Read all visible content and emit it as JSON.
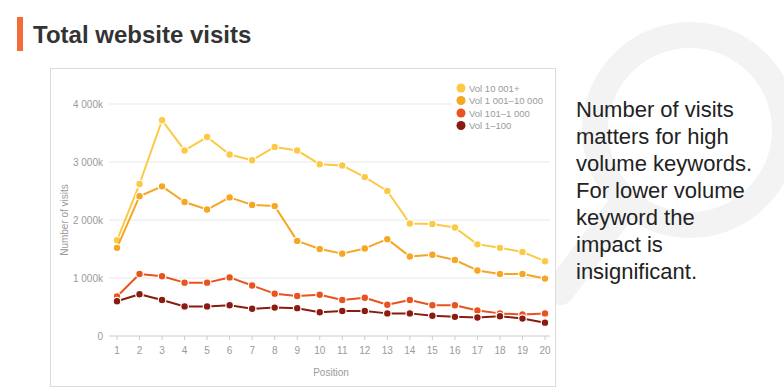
{
  "chart_data": {
    "type": "line",
    "title": "Total website visits",
    "x_label": "Position",
    "y_label": "Number of visits",
    "annotations": [
      "Number of visits",
      "matters for high",
      "volume keywords.",
      "For lower volume",
      "keyword the",
      "impact is",
      "insignificant."
    ],
    "x": [
      1,
      2,
      3,
      4,
      5,
      6,
      7,
      8,
      9,
      10,
      11,
      12,
      13,
      14,
      15,
      16,
      17,
      18,
      19,
      20
    ],
    "xlim": [
      1,
      20
    ],
    "xticks": [
      1,
      2,
      3,
      4,
      5,
      6,
      7,
      8,
      9,
      10,
      11,
      12,
      13,
      14,
      15,
      16,
      17,
      18,
      19,
      20
    ],
    "ylim": [
      0,
      4000000
    ],
    "yticks": [
      0,
      {
        "value": 1000000,
        "label": "1 000k"
      },
      {
        "value": 2000000,
        "label": "2 000k"
      },
      {
        "value": 3000000,
        "label": "3 000k"
      },
      {
        "value": 4000000,
        "label": "4 000k"
      }
    ],
    "grid": true,
    "legend": "top-right",
    "marker": "circle",
    "series": [
      {
        "name": "Vol 10 001+",
        "color": "#fbc943",
        "values": [
          1650000,
          2620000,
          3720000,
          3200000,
          3430000,
          3130000,
          3030000,
          3260000,
          3200000,
          2960000,
          2940000,
          2740000,
          2500000,
          1940000,
          1930000,
          1870000,
          1580000,
          1520000,
          1450000,
          1290000
        ]
      },
      {
        "name": "Vol 1 001–10 000",
        "color": "#f5a623",
        "values": [
          1520000,
          2410000,
          2580000,
          2310000,
          2180000,
          2390000,
          2260000,
          2240000,
          1640000,
          1500000,
          1420000,
          1510000,
          1670000,
          1370000,
          1400000,
          1310000,
          1130000,
          1070000,
          1070000,
          990000
        ]
      },
      {
        "name": "Vol 101–1 000",
        "color": "#e8531f",
        "values": [
          680000,
          1070000,
          1030000,
          920000,
          920000,
          1010000,
          870000,
          730000,
          690000,
          710000,
          620000,
          660000,
          540000,
          620000,
          530000,
          530000,
          440000,
          390000,
          370000,
          390000
        ]
      },
      {
        "name": "Vol 1–100",
        "color": "#8b1a10",
        "values": [
          600000,
          720000,
          620000,
          510000,
          510000,
          530000,
          470000,
          490000,
          480000,
          410000,
          430000,
          430000,
          390000,
          390000,
          350000,
          330000,
          320000,
          340000,
          300000,
          230000
        ]
      }
    ]
  }
}
